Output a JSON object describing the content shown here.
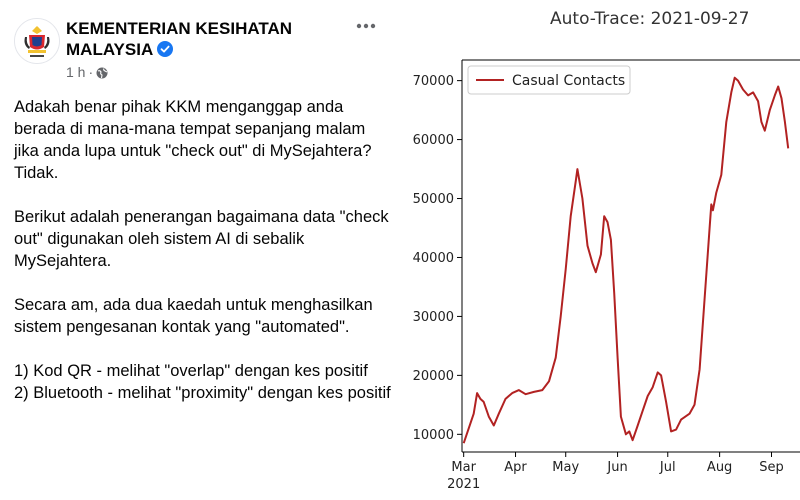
{
  "post": {
    "page_name_line1": "KEMENTERIAN KESIHATAN",
    "page_name_line2": "MALAYSIA",
    "time": "1 h",
    "paragraphs": [
      "Adakah benar pihak KKM menganggap anda berada di mana-mana tempat sepanjang malam jika anda lupa untuk \"check out\" di MySejahtera? Tidak.",
      "Berikut adalah penerangan bagaimana data \"check out\" digunakan oleh sistem AI di sebalik MySejahtera.",
      "Secara am, ada dua kaedah untuk menghasilkan sistem pengesanan kontak yang \"automated\"."
    ],
    "list": [
      "1) Kod QR - melihat \"overlap\" dengan kes positif",
      "2) Bluetooth - melihat \"proximity\" dengan kes positif"
    ],
    "icons": {
      "verified": "verified-badge-icon",
      "globe": "globe-icon",
      "more": "more-options-icon"
    },
    "colors": {
      "verified": "#1877f2",
      "meta": "#65676b"
    }
  },
  "chart_data": {
    "type": "line",
    "title": "Auto-Trace: 2021-09-27",
    "series": [
      {
        "name": "Casual Contacts",
        "color": "#b22222",
        "points": [
          [
            "2021-03-01",
            8500
          ],
          [
            "2021-03-04",
            11000
          ],
          [
            "2021-03-07",
            13500
          ],
          [
            "2021-03-09",
            17000
          ],
          [
            "2021-03-11",
            16000
          ],
          [
            "2021-03-13",
            15500
          ],
          [
            "2021-03-16",
            13000
          ],
          [
            "2021-03-19",
            11500
          ],
          [
            "2021-03-22",
            13500
          ],
          [
            "2021-03-26",
            16000
          ],
          [
            "2021-03-30",
            17000
          ],
          [
            "2021-04-03",
            17500
          ],
          [
            "2021-04-07",
            16800
          ],
          [
            "2021-04-12",
            17200
          ],
          [
            "2021-04-17",
            17500
          ],
          [
            "2021-04-21",
            19000
          ],
          [
            "2021-04-25",
            23000
          ],
          [
            "2021-04-28",
            30000
          ],
          [
            "2021-05-01",
            38000
          ],
          [
            "2021-05-04",
            47000
          ],
          [
            "2021-05-07",
            53000
          ],
          [
            "2021-05-08",
            55000
          ],
          [
            "2021-05-11",
            50000
          ],
          [
            "2021-05-14",
            42000
          ],
          [
            "2021-05-17",
            39000
          ],
          [
            "2021-05-19",
            37500
          ],
          [
            "2021-05-22",
            40500
          ],
          [
            "2021-05-24",
            47000
          ],
          [
            "2021-05-26",
            46000
          ],
          [
            "2021-05-28",
            43000
          ],
          [
            "2021-05-30",
            34000
          ],
          [
            "2021-06-01",
            23000
          ],
          [
            "2021-06-03",
            13000
          ],
          [
            "2021-06-06",
            10000
          ],
          [
            "2021-06-08",
            10500
          ],
          [
            "2021-06-10",
            9000
          ],
          [
            "2021-06-13",
            11500
          ],
          [
            "2021-06-16",
            14000
          ],
          [
            "2021-06-19",
            16500
          ],
          [
            "2021-06-22",
            18000
          ],
          [
            "2021-06-25",
            20500
          ],
          [
            "2021-06-27",
            20000
          ],
          [
            "2021-06-30",
            15500
          ],
          [
            "2021-07-03",
            10500
          ],
          [
            "2021-07-06",
            10800
          ],
          [
            "2021-07-09",
            12500
          ],
          [
            "2021-07-14",
            13500
          ],
          [
            "2021-07-17",
            15000
          ],
          [
            "2021-07-20",
            21000
          ],
          [
            "2021-07-23",
            33000
          ],
          [
            "2021-07-26",
            45000
          ],
          [
            "2021-07-27",
            49000
          ],
          [
            "2021-07-28",
            48000
          ],
          [
            "2021-07-30",
            51000
          ],
          [
            "2021-08-02",
            54000
          ],
          [
            "2021-08-05",
            63000
          ],
          [
            "2021-08-08",
            68000
          ],
          [
            "2021-08-10",
            70500
          ],
          [
            "2021-08-12",
            70000
          ],
          [
            "2021-08-15",
            68500
          ],
          [
            "2021-08-18",
            67500
          ],
          [
            "2021-08-21",
            68000
          ],
          [
            "2021-08-24",
            66500
          ],
          [
            "2021-08-26",
            63000
          ],
          [
            "2021-08-28",
            61500
          ],
          [
            "2021-08-31",
            65000
          ],
          [
            "2021-09-03",
            67500
          ],
          [
            "2021-09-05",
            69000
          ],
          [
            "2021-09-07",
            67000
          ],
          [
            "2021-09-09",
            63000
          ],
          [
            "2021-09-11",
            58500
          ]
        ]
      }
    ],
    "yticks": [
      10000,
      20000,
      30000,
      40000,
      50000,
      60000,
      70000
    ],
    "ylim": [
      7000,
      73500
    ],
    "xlim": [
      "2021-02-28",
      "2021-09-30"
    ],
    "xticks": [
      {
        "date": "2021-03-01",
        "label": "Mar"
      },
      {
        "date": "2021-04-01",
        "label": "Apr"
      },
      {
        "date": "2021-05-01",
        "label": "May"
      },
      {
        "date": "2021-06-01",
        "label": "Jun"
      },
      {
        "date": "2021-07-01",
        "label": "Jul"
      },
      {
        "date": "2021-08-01",
        "label": "Aug"
      },
      {
        "date": "2021-09-01",
        "label": "Sep"
      }
    ],
    "x_year_label": "2021",
    "legend": "top-left",
    "grid": false
  }
}
